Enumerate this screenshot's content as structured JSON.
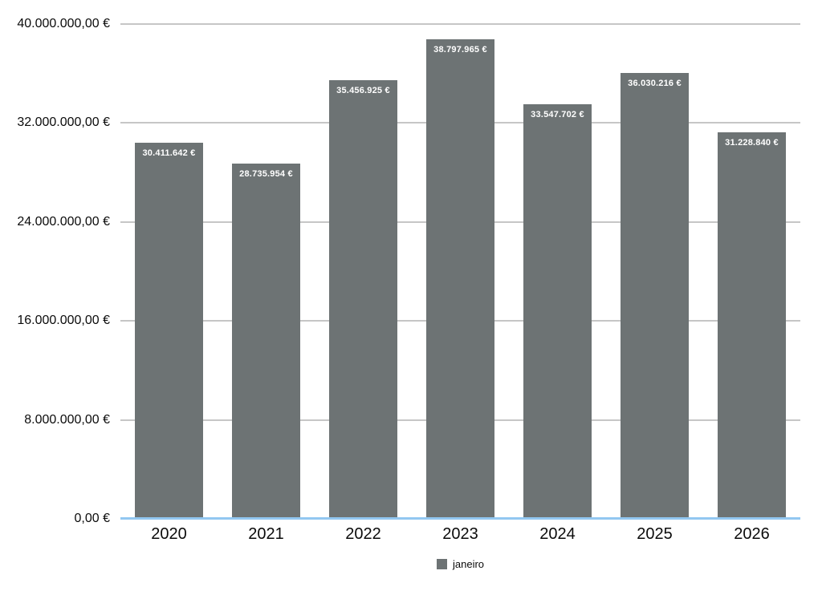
{
  "chart_data": {
    "type": "bar",
    "categories": [
      "2020",
      "2021",
      "2022",
      "2023",
      "2024",
      "2025",
      "2026"
    ],
    "series": [
      {
        "name": "janeiro",
        "values": [
          30411642,
          28735954,
          35456925,
          38797965,
          33547702,
          36030216,
          31228840
        ],
        "value_labels": [
          "30.411.642 €",
          "28.735.954 €",
          "35.456.925 €",
          "38.797.965 €",
          "33.547.702 €",
          "36.030.216 €",
          "31.228.840 €"
        ]
      }
    ],
    "y_ticks": [
      {
        "value": 0,
        "label": "0,00 €"
      },
      {
        "value": 8000000,
        "label": "8.000.000,00 €"
      },
      {
        "value": 16000000,
        "label": "16.000.000,00 €"
      },
      {
        "value": 24000000,
        "label": "24.000.000,00 €"
      },
      {
        "value": 32000000,
        "label": "32.000.000,00 €"
      },
      {
        "value": 40000000,
        "label": "40.000.000,00 €"
      }
    ],
    "ylim": [
      0,
      40000000
    ],
    "xlabel": "",
    "ylabel": "",
    "title": "",
    "grid": true,
    "legend_position": "bottom-center",
    "colors": {
      "bar": "#6d7374",
      "gridline": "#c6c6c6",
      "baseline": "#92c7f1",
      "value_label_text": "#ffffff",
      "axis_text": "#0b0b0b",
      "background": "#ffffff"
    }
  },
  "legend": {
    "items": [
      {
        "label": "janeiro",
        "color": "#6d7374"
      }
    ]
  }
}
